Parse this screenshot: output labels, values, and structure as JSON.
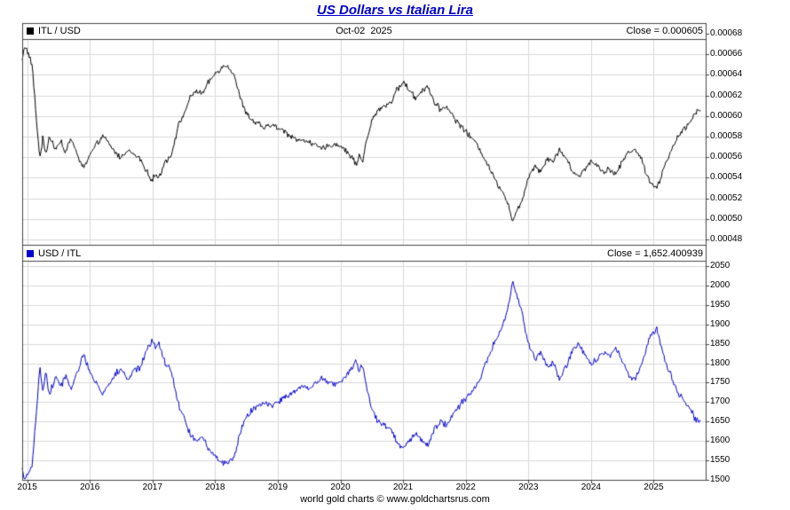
{
  "title": "US Dollars vs Italian Lira",
  "footer": "world gold charts © www.goldchartsrus.com",
  "colors": {
    "title": "#0000cc",
    "frame": "#444444",
    "grid": "#d9d9d9",
    "text": "#000000"
  },
  "panels": {
    "top": {
      "legend": "ITL / USD",
      "date_label": "Oct-02  2025",
      "close_label": "Close = 0.000605"
    },
    "bottom": {
      "legend": "USD / ITL",
      "close_label": "Close = 1,652.400939"
    }
  },
  "x_axis": {
    "xlim": [
      2014.92,
      2025.83
    ],
    "ticks": [
      2015,
      2016,
      2017,
      2018,
      2019,
      2020,
      2021,
      2022,
      2023,
      2024,
      2025
    ],
    "labels": [
      "2015",
      "2016",
      "2017",
      "2018",
      "2019",
      "2020",
      "2021",
      "2022",
      "2023",
      "2024",
      "2025"
    ]
  },
  "chart_data": [
    {
      "type": "line",
      "title": "ITL / USD",
      "series_color": "#000000",
      "close": 0.000605,
      "ylim": [
        0.0004748,
        0.0006748
      ],
      "yticks": [
        0.00068,
        0.00066,
        0.00064,
        0.00062,
        0.0006,
        0.00058,
        0.00056,
        0.00054,
        0.00052,
        0.0005,
        0.00048
      ],
      "ytick_labels": [
        "0.00068",
        "0.00066",
        "0.00064",
        "0.00062",
        "0.00060",
        "0.00058",
        "0.00056",
        "0.00054",
        "0.00052",
        "0.00050",
        "0.00048"
      ],
      "x": [
        2014.92,
        2014.96,
        2015.02,
        2015.08,
        2015.14,
        2015.2,
        2015.25,
        2015.3,
        2015.35,
        2015.45,
        2015.55,
        2015.6,
        2015.7,
        2015.8,
        2015.9,
        2016.0,
        2016.1,
        2016.2,
        2016.3,
        2016.4,
        2016.5,
        2016.6,
        2016.7,
        2016.8,
        2016.9,
        2017.0,
        2017.05,
        2017.1,
        2017.2,
        2017.3,
        2017.4,
        2017.5,
        2017.6,
        2017.7,
        2017.8,
        2017.9,
        2018.0,
        2018.1,
        2018.2,
        2018.3,
        2018.4,
        2018.5,
        2018.6,
        2018.7,
        2018.8,
        2018.9,
        2019.0,
        2019.1,
        2019.2,
        2019.3,
        2019.4,
        2019.5,
        2019.6,
        2019.7,
        2019.8,
        2019.9,
        2020.0,
        2020.1,
        2020.2,
        2020.25,
        2020.3,
        2020.35,
        2020.4,
        2020.5,
        2020.6,
        2020.7,
        2020.8,
        2020.9,
        2021.0,
        2021.1,
        2021.2,
        2021.3,
        2021.4,
        2021.5,
        2021.6,
        2021.7,
        2021.8,
        2021.9,
        2022.0,
        2022.1,
        2022.2,
        2022.3,
        2022.4,
        2022.5,
        2022.6,
        2022.7,
        2022.75,
        2022.8,
        2022.9,
        2023.0,
        2023.1,
        2023.2,
        2023.3,
        2023.4,
        2023.5,
        2023.6,
        2023.7,
        2023.8,
        2023.9,
        2024.0,
        2024.1,
        2024.2,
        2024.3,
        2024.4,
        2024.5,
        2024.6,
        2024.7,
        2024.8,
        2024.9,
        2025.0,
        2025.05,
        2025.1,
        2025.2,
        2025.3,
        2025.4,
        2025.5,
        2025.6,
        2025.65,
        2025.7,
        2025.75
      ],
      "y": [
        0.000654,
        0.000669,
        0.00066,
        0.000649,
        0.000602,
        0.000559,
        0.000578,
        0.000562,
        0.000581,
        0.000568,
        0.000575,
        0.000565,
        0.000578,
        0.000562,
        0.000549,
        0.000562,
        0.000571,
        0.000581,
        0.000573,
        0.000565,
        0.000559,
        0.000568,
        0.000562,
        0.000559,
        0.000546,
        0.000538,
        0.000543,
        0.000539,
        0.000556,
        0.000562,
        0.000588,
        0.000602,
        0.000617,
        0.000625,
        0.000621,
        0.000633,
        0.000641,
        0.000647,
        0.000649,
        0.000641,
        0.000617,
        0.000602,
        0.000595,
        0.000592,
        0.000588,
        0.000592,
        0.000588,
        0.000585,
        0.000581,
        0.000578,
        0.000575,
        0.000576,
        0.000571,
        0.000568,
        0.00057,
        0.000573,
        0.000571,
        0.000565,
        0.000559,
        0.000552,
        0.000562,
        0.000556,
        0.000571,
        0.000595,
        0.000606,
        0.00061,
        0.000613,
        0.000625,
        0.000633,
        0.000625,
        0.000617,
        0.000625,
        0.000629,
        0.000613,
        0.000606,
        0.00061,
        0.000599,
        0.000592,
        0.000585,
        0.000578,
        0.000571,
        0.000559,
        0.000546,
        0.000535,
        0.000526,
        0.00051,
        0.000498,
        0.000505,
        0.000518,
        0.000541,
        0.000552,
        0.000546,
        0.000559,
        0.000556,
        0.000568,
        0.000559,
        0.000546,
        0.000541,
        0.000549,
        0.000556,
        0.000552,
        0.000546,
        0.000549,
        0.000543,
        0.000556,
        0.000565,
        0.000568,
        0.000559,
        0.000541,
        0.000532,
        0.000529,
        0.000538,
        0.000556,
        0.000568,
        0.000581,
        0.000588,
        0.000595,
        0.000602,
        0.000606,
        0.000605
      ]
    },
    {
      "type": "line",
      "title": "USD / ITL",
      "series_color": "#0000cc",
      "close": 1652.400939,
      "ylim": [
        1499.8,
        2063.7
      ],
      "yticks": [
        2050,
        2000,
        1950,
        1900,
        1850,
        1800,
        1750,
        1700,
        1650,
        1600,
        1550,
        1500
      ],
      "ytick_labels": [
        "2050",
        "2000",
        "1950",
        "1900",
        "1850",
        "1800",
        "1750",
        "1700",
        "1650",
        "1600",
        "1550",
        "1500"
      ],
      "x": [
        2014.92,
        2014.96,
        2015.02,
        2015.08,
        2015.14,
        2015.2,
        2015.25,
        2015.3,
        2015.35,
        2015.45,
        2015.55,
        2015.6,
        2015.7,
        2015.8,
        2015.9,
        2016.0,
        2016.1,
        2016.2,
        2016.3,
        2016.4,
        2016.5,
        2016.6,
        2016.7,
        2016.8,
        2016.9,
        2017.0,
        2017.05,
        2017.1,
        2017.2,
        2017.3,
        2017.4,
        2017.5,
        2017.6,
        2017.7,
        2017.8,
        2017.9,
        2018.0,
        2018.1,
        2018.2,
        2018.3,
        2018.4,
        2018.5,
        2018.6,
        2018.7,
        2018.8,
        2018.9,
        2019.0,
        2019.1,
        2019.2,
        2019.3,
        2019.4,
        2019.5,
        2019.6,
        2019.7,
        2019.8,
        2019.9,
        2020.0,
        2020.1,
        2020.2,
        2020.25,
        2020.3,
        2020.35,
        2020.4,
        2020.5,
        2020.6,
        2020.7,
        2020.8,
        2020.9,
        2021.0,
        2021.1,
        2021.2,
        2021.3,
        2021.4,
        2021.5,
        2021.6,
        2021.7,
        2021.8,
        2021.9,
        2022.0,
        2022.1,
        2022.2,
        2022.3,
        2022.4,
        2022.5,
        2022.6,
        2022.7,
        2022.75,
        2022.8,
        2022.9,
        2023.0,
        2023.1,
        2023.2,
        2023.3,
        2023.4,
        2023.5,
        2023.6,
        2023.7,
        2023.8,
        2023.9,
        2024.0,
        2024.1,
        2024.2,
        2024.3,
        2024.4,
        2024.5,
        2024.6,
        2024.7,
        2024.8,
        2024.9,
        2025.0,
        2025.05,
        2025.1,
        2025.2,
        2025.3,
        2025.4,
        2025.5,
        2025.6,
        2025.65,
        2025.7,
        2025.75
      ],
      "y": [
        1530,
        1495,
        1515,
        1540,
        1660,
        1790,
        1730,
        1780,
        1720,
        1760,
        1740,
        1770,
        1730,
        1780,
        1820,
        1780,
        1750,
        1720,
        1745,
        1770,
        1790,
        1760,
        1780,
        1790,
        1830,
        1860,
        1840,
        1855,
        1800,
        1780,
        1700,
        1660,
        1620,
        1600,
        1610,
        1580,
        1560,
        1545,
        1540,
        1560,
        1620,
        1660,
        1680,
        1690,
        1700,
        1690,
        1700,
        1710,
        1720,
        1730,
        1740,
        1735,
        1750,
        1760,
        1755,
        1745,
        1750,
        1770,
        1790,
        1810,
        1780,
        1800,
        1750,
        1680,
        1650,
        1640,
        1630,
        1600,
        1580,
        1600,
        1620,
        1600,
        1590,
        1630,
        1650,
        1640,
        1670,
        1690,
        1710,
        1730,
        1750,
        1790,
        1830,
        1870,
        1900,
        1960,
        2010,
        1980,
        1930,
        1850,
        1810,
        1830,
        1790,
        1800,
        1760,
        1790,
        1830,
        1850,
        1820,
        1800,
        1810,
        1830,
        1820,
        1840,
        1800,
        1770,
        1760,
        1790,
        1850,
        1880,
        1890,
        1860,
        1800,
        1760,
        1720,
        1700,
        1680,
        1660,
        1650,
        1652.4
      ]
    }
  ]
}
